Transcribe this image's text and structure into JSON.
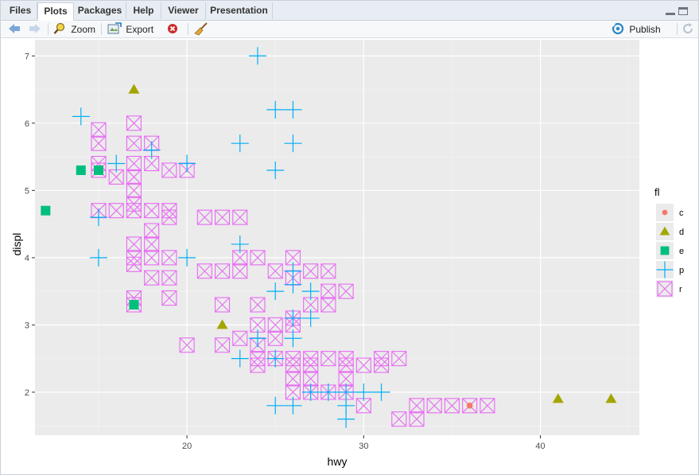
{
  "tabs": [
    {
      "label": "Files",
      "active": false
    },
    {
      "label": "Plots",
      "active": true
    },
    {
      "label": "Packages",
      "active": false
    },
    {
      "label": "Help",
      "active": false
    },
    {
      "label": "Viewer",
      "active": false
    },
    {
      "label": "Presentation",
      "active": false
    }
  ],
  "toolbar": {
    "zoom_label": "Zoom",
    "export_label": "Export",
    "publish_label": "Publish"
  },
  "icons": [
    "back-arrow-icon",
    "forward-arrow-icon",
    "zoom-icon",
    "export-icon",
    "dropdown-caret-icon",
    "remove-plot-icon",
    "broom-icon",
    "publish-icon",
    "refresh-icon",
    "minimize-icon",
    "maximize-icon"
  ],
  "chart_data": {
    "type": "scatter",
    "xlabel": "hwy",
    "ylabel": "displ",
    "xlim": [
      11.4,
      45.6
    ],
    "ylim": [
      1.36,
      7.24
    ],
    "x_ticks": [
      20,
      30,
      40
    ],
    "y_ticks": [
      2,
      3,
      4,
      5,
      6,
      7
    ],
    "grid": true,
    "legend": {
      "title": "fl",
      "placement": "right",
      "entries": [
        {
          "key": "c",
          "color": "#F8766D",
          "shape": "circle"
        },
        {
          "key": "d",
          "color": "#A3A500",
          "shape": "triangle"
        },
        {
          "key": "e",
          "color": "#00BF7D",
          "shape": "square"
        },
        {
          "key": "p",
          "color": "#00B0F6",
          "shape": "plus"
        },
        {
          "key": "r",
          "color": "#E76BF3",
          "shape": "square-x"
        }
      ]
    },
    "series": [
      {
        "name": "c",
        "points": [
          [
            36,
            1.8
          ]
        ]
      },
      {
        "name": "d",
        "points": [
          [
            17,
            6.5
          ],
          [
            22,
            3.0
          ],
          [
            41,
            1.9
          ],
          [
            44,
            1.9
          ]
        ]
      },
      {
        "name": "e",
        "points": [
          [
            12,
            4.7
          ],
          [
            14,
            5.3
          ],
          [
            15,
            5.3
          ],
          [
            17,
            3.3
          ]
        ]
      },
      {
        "name": "p",
        "points": [
          [
            24,
            7.0
          ],
          [
            14,
            6.1
          ],
          [
            25,
            6.2
          ],
          [
            26,
            6.2
          ],
          [
            23,
            5.7
          ],
          [
            26,
            5.7
          ],
          [
            18,
            5.6
          ],
          [
            16,
            5.4
          ],
          [
            20,
            5.4
          ],
          [
            25,
            5.3
          ],
          [
            15,
            4.6
          ],
          [
            15,
            4.0
          ],
          [
            20,
            4.0
          ],
          [
            23,
            4.2
          ],
          [
            26,
            3.8
          ],
          [
            26,
            3.6
          ],
          [
            25,
            3.5
          ],
          [
            27,
            3.5
          ],
          [
            26,
            3.1
          ],
          [
            27,
            3.1
          ],
          [
            24,
            2.8
          ],
          [
            26,
            2.8
          ],
          [
            23,
            2.5
          ],
          [
            25,
            2.5
          ],
          [
            27,
            2.0
          ],
          [
            28,
            2.0
          ],
          [
            29,
            2.0
          ],
          [
            30,
            2.0
          ],
          [
            31,
            2.0
          ],
          [
            29,
            1.8
          ],
          [
            25,
            1.8
          ],
          [
            26,
            1.8
          ],
          [
            29,
            1.6
          ]
        ]
      },
      {
        "name": "r",
        "points": [
          [
            15,
            5.9
          ],
          [
            15,
            5.7
          ],
          [
            15,
            5.4
          ],
          [
            15,
            5.3
          ],
          [
            15,
            4.7
          ],
          [
            16,
            5.2
          ],
          [
            16,
            4.7
          ],
          [
            17,
            6.0
          ],
          [
            17,
            5.7
          ],
          [
            17,
            5.4
          ],
          [
            17,
            5.2
          ],
          [
            17,
            5.0
          ],
          [
            17,
            4.8
          ],
          [
            17,
            4.7
          ],
          [
            17,
            4.2
          ],
          [
            17,
            4.0
          ],
          [
            17,
            3.9
          ],
          [
            17,
            3.4
          ],
          [
            17,
            3.3
          ],
          [
            18,
            5.7
          ],
          [
            18,
            5.4
          ],
          [
            18,
            4.7
          ],
          [
            18,
            4.4
          ],
          [
            18,
            4.2
          ],
          [
            18,
            4.0
          ],
          [
            18,
            3.7
          ],
          [
            19,
            5.3
          ],
          [
            19,
            4.7
          ],
          [
            19,
            4.6
          ],
          [
            19,
            4.0
          ],
          [
            19,
            3.7
          ],
          [
            19,
            3.4
          ],
          [
            20,
            5.3
          ],
          [
            20,
            2.7
          ],
          [
            21,
            4.6
          ],
          [
            21,
            3.8
          ],
          [
            22,
            4.6
          ],
          [
            22,
            3.8
          ],
          [
            22,
            3.3
          ],
          [
            22,
            2.7
          ],
          [
            23,
            4.6
          ],
          [
            23,
            4.0
          ],
          [
            23,
            3.8
          ],
          [
            23,
            2.8
          ],
          [
            24,
            4.0
          ],
          [
            24,
            3.3
          ],
          [
            24,
            3.0
          ],
          [
            24,
            2.7
          ],
          [
            24,
            2.5
          ],
          [
            24,
            2.4
          ],
          [
            25,
            3.8
          ],
          [
            25,
            3.0
          ],
          [
            25,
            2.8
          ],
          [
            25,
            2.5
          ],
          [
            26,
            4.0
          ],
          [
            26,
            3.7
          ],
          [
            26,
            3.1
          ],
          [
            26,
            3.0
          ],
          [
            26,
            2.5
          ],
          [
            26,
            2.4
          ],
          [
            26,
            2.2
          ],
          [
            26,
            2.0
          ],
          [
            27,
            3.8
          ],
          [
            27,
            3.3
          ],
          [
            27,
            2.5
          ],
          [
            27,
            2.4
          ],
          [
            27,
            2.2
          ],
          [
            27,
            2.0
          ],
          [
            28,
            3.8
          ],
          [
            28,
            3.5
          ],
          [
            28,
            3.3
          ],
          [
            28,
            2.5
          ],
          [
            28,
            2.0
          ],
          [
            29,
            3.5
          ],
          [
            29,
            2.5
          ],
          [
            29,
            2.4
          ],
          [
            29,
            2.2
          ],
          [
            29,
            2.0
          ],
          [
            30,
            2.4
          ],
          [
            30,
            1.8
          ],
          [
            31,
            2.5
          ],
          [
            31,
            2.4
          ],
          [
            32,
            2.5
          ],
          [
            32,
            1.6
          ],
          [
            33,
            1.8
          ],
          [
            33,
            1.6
          ],
          [
            34,
            1.8
          ],
          [
            35,
            1.8
          ],
          [
            36,
            1.8
          ],
          [
            37,
            1.8
          ]
        ]
      }
    ]
  }
}
